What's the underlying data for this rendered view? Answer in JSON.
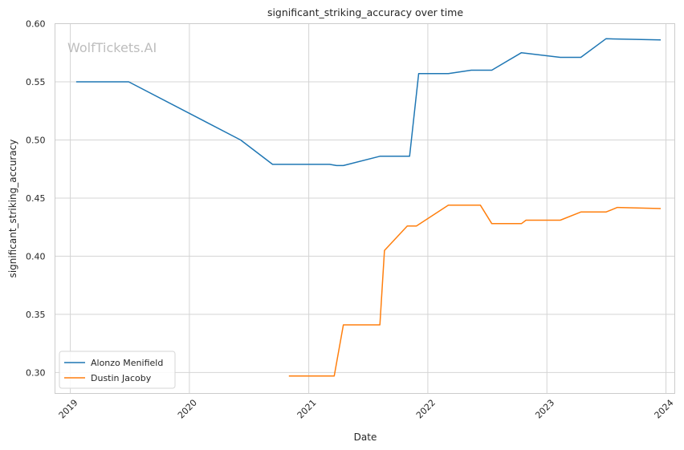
{
  "chart_data": {
    "type": "line",
    "title": "significant_striking_accuracy over time",
    "xlabel": "Date",
    "ylabel": "significant_striking_accuracy",
    "watermark": "WolfTickets.AI",
    "xlim": [
      "2018-11-15",
      "2024-01-28"
    ],
    "ylim": [
      0.282,
      0.6
    ],
    "x_ticks": [
      "2019-01-01",
      "2020-01-01",
      "2021-01-01",
      "2022-01-01",
      "2023-01-01",
      "2024-01-01"
    ],
    "x_tick_labels": [
      "2019",
      "2020",
      "2021",
      "2022",
      "2023",
      "2024"
    ],
    "y_ticks": [
      0.3,
      0.35,
      0.4,
      0.45,
      0.5,
      0.55,
      0.6
    ],
    "y_tick_labels": [
      "0.30",
      "0.35",
      "0.40",
      "0.45",
      "0.50",
      "0.55",
      "0.60"
    ],
    "grid": true,
    "legend_position": "bottom-left",
    "series": [
      {
        "name": "Alonzo Menifield",
        "color": "#1f77b4",
        "points": [
          {
            "x": "2019-01-19",
            "y": 0.55
          },
          {
            "x": "2019-06-29",
            "y": 0.55
          },
          {
            "x": "2020-06-06",
            "y": 0.5
          },
          {
            "x": "2020-09-12",
            "y": 0.479
          },
          {
            "x": "2021-03-06",
            "y": 0.479
          },
          {
            "x": "2021-03-27",
            "y": 0.478
          },
          {
            "x": "2021-04-17",
            "y": 0.478
          },
          {
            "x": "2021-08-07",
            "y": 0.486
          },
          {
            "x": "2021-11-06",
            "y": 0.486
          },
          {
            "x": "2021-12-04",
            "y": 0.557
          },
          {
            "x": "2022-03-05",
            "y": 0.557
          },
          {
            "x": "2022-05-14",
            "y": 0.56
          },
          {
            "x": "2022-07-16",
            "y": 0.56
          },
          {
            "x": "2022-10-15",
            "y": 0.575
          },
          {
            "x": "2023-02-11",
            "y": 0.571
          },
          {
            "x": "2023-04-15",
            "y": 0.571
          },
          {
            "x": "2023-07-01",
            "y": 0.587
          },
          {
            "x": "2023-12-16",
            "y": 0.586
          }
        ]
      },
      {
        "name": "Dustin Jacoby",
        "color": "#ff7f0e",
        "points": [
          {
            "x": "2020-11-01",
            "y": 0.297
          },
          {
            "x": "2021-03-20",
            "y": 0.297
          },
          {
            "x": "2021-04-17",
            "y": 0.341
          },
          {
            "x": "2021-08-07",
            "y": 0.341
          },
          {
            "x": "2021-08-21",
            "y": 0.405
          },
          {
            "x": "2021-10-30",
            "y": 0.426
          },
          {
            "x": "2021-11-27",
            "y": 0.426
          },
          {
            "x": "2022-03-05",
            "y": 0.444
          },
          {
            "x": "2022-06-11",
            "y": 0.444
          },
          {
            "x": "2022-07-16",
            "y": 0.428
          },
          {
            "x": "2022-10-15",
            "y": 0.428
          },
          {
            "x": "2022-10-29",
            "y": 0.431
          },
          {
            "x": "2023-02-11",
            "y": 0.431
          },
          {
            "x": "2023-04-15",
            "y": 0.438
          },
          {
            "x": "2023-07-01",
            "y": 0.438
          },
          {
            "x": "2023-08-05",
            "y": 0.442
          },
          {
            "x": "2023-12-16",
            "y": 0.441
          }
        ]
      }
    ]
  }
}
